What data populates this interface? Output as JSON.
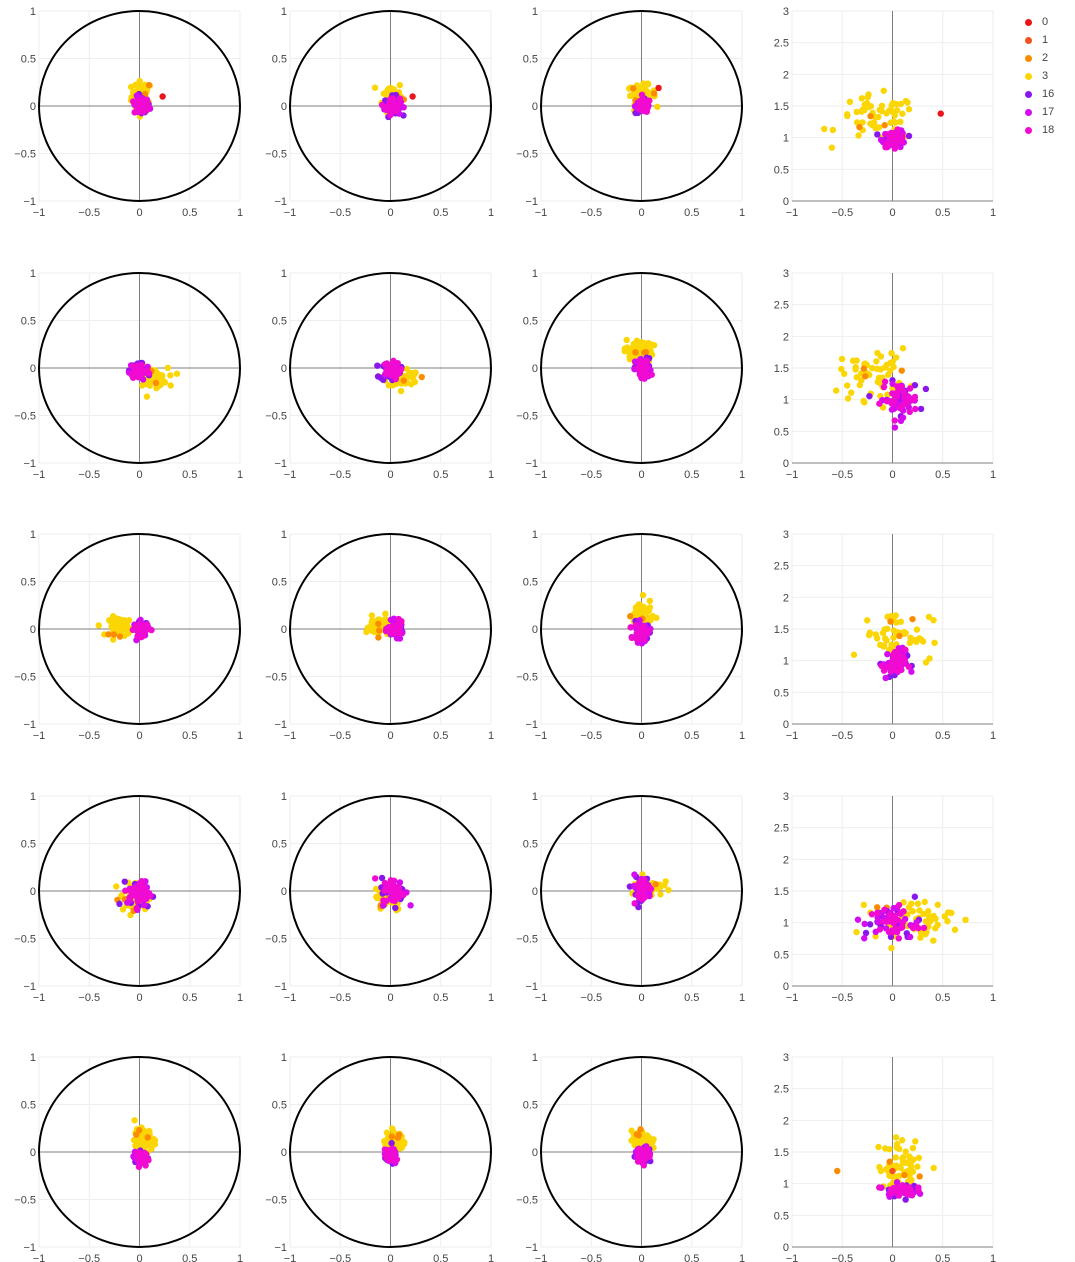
{
  "legend": {
    "placement": "top-right",
    "items": [
      {
        "label": "0",
        "color": "#e8151b"
      },
      {
        "label": "1",
        "color": "#f4511e"
      },
      {
        "label": "2",
        "color": "#fb8c00"
      },
      {
        "label": "3",
        "color": "#fbd605"
      },
      {
        "label": "16",
        "color": "#8a16ee"
      },
      {
        "label": "17",
        "color": "#d50bf0"
      },
      {
        "label": "18",
        "color": "#f10bd2"
      }
    ]
  },
  "chart_data": {
    "type": "scatter",
    "grid": true,
    "layout": "5 rows x 4 columns",
    "series_names": [
      "0",
      "1",
      "2",
      "3",
      "16",
      "17",
      "18"
    ],
    "circle_plot": {
      "unit_circle": true,
      "xlim": [
        -1,
        1
      ],
      "ylim": [
        -1,
        1
      ],
      "xticks": [
        "−1",
        "−0.5",
        "0",
        "0.5",
        "1"
      ],
      "yticks": [
        "−1",
        "−0.5",
        "0",
        "0.5",
        "1"
      ]
    },
    "norm_plot": {
      "xlim": [
        -1,
        1
      ],
      "ylim": [
        0,
        3
      ],
      "xticks": [
        "−1",
        "−0.5",
        "0",
        "0.5",
        "1"
      ],
      "yticks": [
        "0",
        "0.5",
        "1",
        "1.5",
        "2",
        "2.5",
        "3"
      ]
    },
    "rows": [
      {
        "clusters": [
          {
            "cx": 0.02,
            "cy": 0.1,
            "sx": 0.05,
            "sy": 0.08,
            "cx4": -0.05,
            "cy4": 1.2,
            "sx4": 0.15,
            "sy4": 0.2
          },
          {
            "cx": 0.02,
            "cy": 0.1,
            "sx": 0.05,
            "sy": 0.08,
            "cx4": -0.05,
            "cy4": 1.2,
            "sx4": 0.15,
            "sy4": 0.2
          },
          {
            "cx": 0.0,
            "cy": 0.12,
            "sx": 0.07,
            "sy": 0.05,
            "cx4": -0.05,
            "cy4": 1.2,
            "sx4": 0.15,
            "sy4": 0.2
          },
          {
            "cx": 0.0,
            "cy": 0.0,
            "sx": 0.0,
            "sy": 0.0,
            "cx4": -0.15,
            "cy4": 1.3,
            "sx4": 0.2,
            "sy4": 0.18
          }
        ],
        "base": [
          {
            "cx": 0.02,
            "cy": 0.0,
            "sx": 0.04,
            "sy": 0.05
          },
          {
            "cx": 0.02,
            "cy": 0.0,
            "sx": 0.04,
            "sy": 0.05
          },
          {
            "cx": 0.02,
            "cy": 0.0,
            "sx": 0.04,
            "sy": 0.04
          },
          {
            "cx": 0.02,
            "cy": 0.98,
            "sx": 0.06,
            "sy": 0.07
          }
        ],
        "outliers": [
          {
            "label": "0",
            "points": [
              [
                0.23,
                0.1
              ],
              [
                0.22,
                0.1
              ],
              [
                0.17,
                0.19
              ],
              [
                0.48,
                1.38
              ]
            ]
          }
        ]
      },
      {
        "clusters": [
          {
            "cx": 0.12,
            "cy": -0.1,
            "sx": 0.08,
            "sy": 0.05,
            "cx4": -0.18,
            "cy4": 1.4,
            "sx4": 0.17,
            "sy4": 0.2
          },
          {
            "cx": 0.12,
            "cy": -0.1,
            "sx": 0.08,
            "sy": 0.05,
            "cx4": -0.18,
            "cy4": 1.4,
            "sx4": 0.17,
            "sy4": 0.2
          },
          {
            "cx": -0.03,
            "cy": 0.18,
            "sx": 0.07,
            "sy": 0.06,
            "cx4": -0.18,
            "cy4": 1.4,
            "sx4": 0.17,
            "sy4": 0.2
          },
          {
            "cx": 0.0,
            "cy": 0.0,
            "sx": 0.0,
            "sy": 0.0,
            "cx4": -0.18,
            "cy4": 1.4,
            "sx4": 0.17,
            "sy4": 0.2
          }
        ],
        "base": [
          {
            "cx": 0.0,
            "cy": -0.03,
            "sx": 0.05,
            "sy": 0.05
          },
          {
            "cx": 0.0,
            "cy": -0.03,
            "sx": 0.05,
            "sy": 0.05
          },
          {
            "cx": 0.02,
            "cy": -0.02,
            "sx": 0.04,
            "sy": 0.06
          },
          {
            "cx": 0.07,
            "cy": 1.0,
            "sx": 0.1,
            "sy": 0.14
          }
        ],
        "outliers": []
      },
      {
        "clusters": [
          {
            "cx": -0.18,
            "cy": 0.03,
            "sx": 0.06,
            "sy": 0.05,
            "cx4": -0.1,
            "cy4": 1.3,
            "sx4": 0.22,
            "sy4": 0.2
          },
          {
            "cx": -0.12,
            "cy": 0.03,
            "sx": 0.06,
            "sy": 0.05,
            "cx4": -0.1,
            "cy4": 1.3,
            "sx4": 0.22,
            "sy4": 0.2
          },
          {
            "cx": 0.0,
            "cy": 0.15,
            "sx": 0.05,
            "sy": 0.08,
            "cx4": -0.1,
            "cy4": 1.3,
            "sx4": 0.22,
            "sy4": 0.2
          },
          {
            "cx": 0.0,
            "cy": 0.0,
            "sx": 0.0,
            "sy": 0.0,
            "cx4": 0.05,
            "cy4": 1.4,
            "sx4": 0.17,
            "sy4": 0.2
          }
        ],
        "base": [
          {
            "cx": 0.02,
            "cy": 0.0,
            "sx": 0.04,
            "sy": 0.04
          },
          {
            "cx": 0.05,
            "cy": 0.0,
            "sx": 0.04,
            "sy": 0.04
          },
          {
            "cx": 0.0,
            "cy": -0.04,
            "sx": 0.04,
            "sy": 0.05
          },
          {
            "cx": 0.02,
            "cy": 0.95,
            "sx": 0.06,
            "sy": 0.12
          }
        ],
        "outliers": []
      },
      {
        "clusters": [
          {
            "cx": -0.05,
            "cy": -0.08,
            "sx": 0.07,
            "sy": 0.08,
            "cx4": 0.0,
            "cy4": 1.05,
            "sx4": 0.2,
            "sy4": 0.15
          },
          {
            "cx": -0.02,
            "cy": -0.05,
            "sx": 0.07,
            "sy": 0.08,
            "cx4": 0.0,
            "cy4": 1.05,
            "sx4": 0.2,
            "sy4": 0.15
          },
          {
            "cx": 0.05,
            "cy": 0.05,
            "sx": 0.08,
            "sy": 0.05,
            "cx4": 0.0,
            "cy4": 1.05,
            "sx4": 0.2,
            "sy4": 0.15
          },
          {
            "cx": 0.0,
            "cy": 0.0,
            "sx": 0.0,
            "sy": 0.0,
            "cx4": 0.2,
            "cy4": 1.05,
            "sx4": 0.2,
            "sy4": 0.15
          }
        ],
        "base": [
          {
            "cx": 0.0,
            "cy": -0.03,
            "sx": 0.06,
            "sy": 0.07
          },
          {
            "cx": 0.03,
            "cy": 0.0,
            "sx": 0.06,
            "sy": 0.07
          },
          {
            "cx": 0.0,
            "cy": 0.02,
            "sx": 0.05,
            "sy": 0.07
          },
          {
            "cx": 0.0,
            "cy": 1.0,
            "sx": 0.14,
            "sy": 0.15
          }
        ],
        "outliers": []
      },
      {
        "clusters": [
          {
            "cx": 0.05,
            "cy": 0.12,
            "sx": 0.05,
            "sy": 0.06,
            "cx4": -0.2,
            "cy4": 1.15,
            "sx4": 0.17,
            "sy4": 0.15
          },
          {
            "cx": 0.05,
            "cy": 0.12,
            "sx": 0.05,
            "sy": 0.06,
            "cx4": -0.2,
            "cy4": 1.15,
            "sx4": 0.17,
            "sy4": 0.15
          },
          {
            "cx": 0.0,
            "cy": 0.13,
            "sx": 0.05,
            "sy": 0.05,
            "cx4": -0.2,
            "cy4": 1.15,
            "sx4": 0.17,
            "sy4": 0.15
          },
          {
            "cx": 0.0,
            "cy": 0.0,
            "sx": 0.0,
            "sy": 0.0,
            "cx4": 0.1,
            "cy4": 1.3,
            "sx4": 0.12,
            "sy4": 0.2
          }
        ],
        "base": [
          {
            "cx": 0.0,
            "cy": -0.05,
            "sx": 0.03,
            "sy": 0.04
          },
          {
            "cx": 0.0,
            "cy": -0.05,
            "sx": 0.03,
            "sy": 0.04
          },
          {
            "cx": 0.02,
            "cy": -0.03,
            "sx": 0.04,
            "sy": 0.04
          },
          {
            "cx": 0.08,
            "cy": 0.9,
            "sx": 0.08,
            "sy": 0.05
          }
        ],
        "outliers": [
          {
            "label": "1",
            "points": [
              [
                0.12,
                1.65
              ],
              [
                0.0,
                1.2
              ]
            ]
          },
          {
            "label": "2",
            "points": [
              [
                -0.55,
                1.2
              ]
            ]
          }
        ]
      }
    ]
  }
}
